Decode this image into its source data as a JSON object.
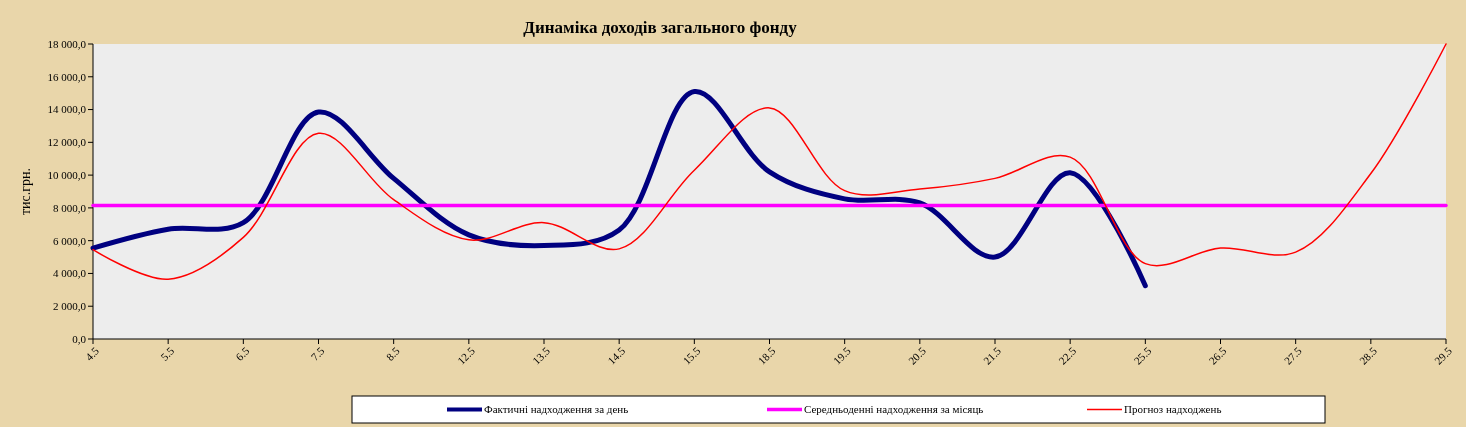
{
  "chart_data": {
    "type": "line",
    "title": "Динаміка доходів загального фонду",
    "ylabel": "тис.грн.",
    "categories": [
      "4.5",
      "5.5",
      "6.5",
      "7.5",
      "8.5",
      "12.5",
      "13.5",
      "14.5",
      "15.5",
      "18.5",
      "19.5",
      "20.5",
      "21.5",
      "22.5",
      "25.5",
      "26.5",
      "27.5",
      "28.5",
      "29.5"
    ],
    "series": [
      {
        "name": "Фактичні надходження за день",
        "color": "#000080",
        "values": [
          5550,
          6700,
          7100,
          13850,
          9800,
          6350,
          5700,
          6650,
          15100,
          10200,
          8550,
          8300,
          5000,
          10150,
          3250,
          null,
          null,
          null,
          null
        ]
      },
      {
        "name": "Середньоденні надходження за місяць",
        "color": "#ff00ff",
        "values": [
          8150,
          8150,
          8150,
          8150,
          8150,
          8150,
          8150,
          8150,
          8150,
          8150,
          8150,
          8150,
          8150,
          8150,
          8150,
          8150,
          8150,
          8150,
          8150
        ]
      },
      {
        "name": "Прогноз надходжень",
        "color": "#ff0000",
        "values": [
          5450,
          3650,
          6200,
          12550,
          8500,
          6050,
          7100,
          5500,
          10300,
          14100,
          9050,
          9150,
          9800,
          11100,
          4600,
          5550,
          5300,
          10100,
          18000
        ]
      }
    ],
    "ylim": [
      0,
      18000
    ],
    "yticks": [
      {
        "value": 0,
        "label": "0,0"
      },
      {
        "value": 2000,
        "label": "2 000,0"
      },
      {
        "value": 4000,
        "label": "4 000,0"
      },
      {
        "value": 6000,
        "label": "6 000,0"
      },
      {
        "value": 8000,
        "label": "8 000,0"
      },
      {
        "value": 10000,
        "label": "10 000,0"
      },
      {
        "value": 12000,
        "label": "12 000,0"
      },
      {
        "value": 14000,
        "label": "14 000,0"
      },
      {
        "value": 16000,
        "label": "16 000,0"
      },
      {
        "value": 18000,
        "label": "18 000,0"
      }
    ],
    "legend": "bottom",
    "grid": false
  }
}
